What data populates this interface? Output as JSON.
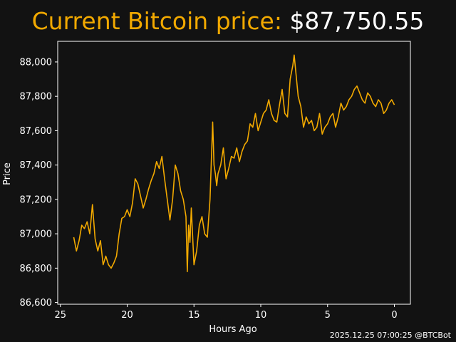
{
  "header": {
    "title_label": "Current Bitcoin price: ",
    "price": "$87,750.55"
  },
  "footer": {
    "timestamp": "2025.12.25 07:00:25 @BTCBot"
  },
  "colors": {
    "background": "#121212",
    "accent": "#F2A900",
    "text": "#FFFFFF"
  },
  "chart_data": {
    "type": "line",
    "xlabel": "Hours Ago",
    "ylabel": "Price",
    "xlim": [
      25.2,
      -1.2
    ],
    "ylim": [
      86590,
      88120
    ],
    "x_reversed": true,
    "grid": false,
    "x_ticks": [
      25,
      20,
      15,
      10,
      5,
      0
    ],
    "x_tick_labels": [
      "25",
      "20",
      "15",
      "10",
      "5",
      "0"
    ],
    "y_ticks": [
      86600,
      86800,
      87000,
      87200,
      87400,
      87600,
      87800,
      88000
    ],
    "y_tick_labels": [
      "86,600",
      "86,800",
      "87,000",
      "87,200",
      "87,400",
      "87,600",
      "87,800",
      "88,000"
    ],
    "series": [
      {
        "color": "#F2A900",
        "x": [
          24,
          23.8,
          23.6,
          23.4,
          23.2,
          23.0,
          22.8,
          22.6,
          22.4,
          22.2,
          22.0,
          21.8,
          21.6,
          21.4,
          21.2,
          21.0,
          20.8,
          20.6,
          20.4,
          20.2,
          20.0,
          19.8,
          19.6,
          19.4,
          19.2,
          19.0,
          18.8,
          18.6,
          18.4,
          18.2,
          18.0,
          17.8,
          17.6,
          17.4,
          17.2,
          17.0,
          16.8,
          16.6,
          16.4,
          16.2,
          16.0,
          15.8,
          15.6,
          15.5,
          15.4,
          15.3,
          15.2,
          15.0,
          14.8,
          14.6,
          14.4,
          14.2,
          14.0,
          13.8,
          13.6,
          13.5,
          13.4,
          13.3,
          13.2,
          13.0,
          12.8,
          12.6,
          12.4,
          12.2,
          12.0,
          11.8,
          11.6,
          11.4,
          11.2,
          11.0,
          10.8,
          10.6,
          10.4,
          10.2,
          10.0,
          9.8,
          9.6,
          9.4,
          9.2,
          9.0,
          8.8,
          8.6,
          8.4,
          8.2,
          8.0,
          7.8,
          7.6,
          7.5,
          7.4,
          7.2,
          7.0,
          6.8,
          6.6,
          6.4,
          6.2,
          6.0,
          5.8,
          5.6,
          5.4,
          5.2,
          5.0,
          4.8,
          4.6,
          4.4,
          4.2,
          4.0,
          3.8,
          3.6,
          3.4,
          3.2,
          3.0,
          2.8,
          2.6,
          2.4,
          2.2,
          2.0,
          1.8,
          1.6,
          1.4,
          1.2,
          1.0,
          0.8,
          0.6,
          0.4,
          0.2,
          0
        ],
        "y": [
          86980,
          86900,
          86960,
          87050,
          87030,
          87070,
          87000,
          87170,
          86970,
          86900,
          86960,
          86820,
          86870,
          86820,
          86800,
          86830,
          86870,
          87000,
          87090,
          87100,
          87140,
          87100,
          87180,
          87320,
          87290,
          87220,
          87150,
          87200,
          87260,
          87310,
          87350,
          87420,
          87380,
          87450,
          87320,
          87200,
          87080,
          87200,
          87400,
          87350,
          87250,
          87200,
          87100,
          86780,
          87050,
          86950,
          87150,
          86820,
          86900,
          87050,
          87100,
          87000,
          86980,
          87200,
          87650,
          87400,
          87350,
          87280,
          87350,
          87400,
          87500,
          87320,
          87380,
          87450,
          87440,
          87500,
          87420,
          87480,
          87520,
          87540,
          87640,
          87620,
          87700,
          87600,
          87650,
          87700,
          87720,
          87780,
          87700,
          87660,
          87650,
          87750,
          87840,
          87700,
          87680,
          87900,
          87980,
          88040,
          87960,
          87800,
          87740,
          87620,
          87680,
          87640,
          87660,
          87600,
          87620,
          87700,
          87580,
          87620,
          87640,
          87680,
          87700,
          87620,
          87680,
          87760,
          87720,
          87740,
          87780,
          87800,
          87840,
          87860,
          87820,
          87780,
          87760,
          87820,
          87800,
          87760,
          87740,
          87780,
          87760,
          87700,
          87720,
          87760,
          87780,
          87750.55
        ]
      }
    ]
  }
}
